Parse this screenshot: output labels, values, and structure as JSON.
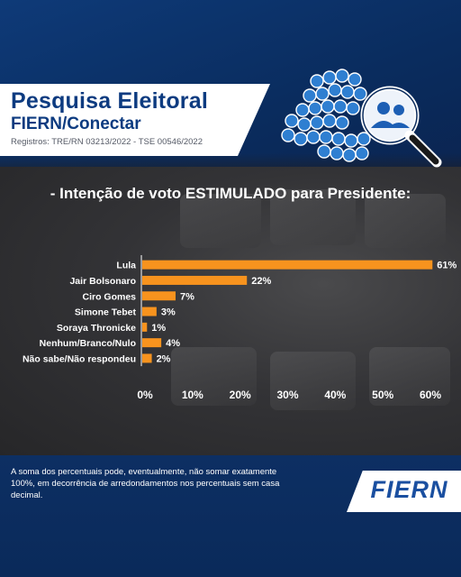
{
  "header": {
    "title": "Pesquisa Eleitoral",
    "subtitle": "FIERN/Conectar",
    "registros": "Registros: TRE/RN 03213/2022 - TSE 00546/2022"
  },
  "heading": "- Intenção de voto ESTIMULADO para Presidente:",
  "chart_data": {
    "type": "bar",
    "orientation": "horizontal",
    "categories": [
      "Lula",
      "Jair Bolsonaro",
      "Ciro Gomes",
      "Simone Tebet",
      "Soraya Thronicke",
      "Nenhum/Branco/Nulo",
      "Não sabe/Não respondeu"
    ],
    "values": [
      61,
      22,
      7,
      3,
      1,
      4,
      2
    ],
    "value_labels": [
      "61%",
      "22%",
      "7%",
      "3%",
      "1%",
      "4%",
      "2%"
    ],
    "xlim": [
      0,
      60
    ],
    "xticks": [
      "0%",
      "10%",
      "20%",
      "30%",
      "40%",
      "50%",
      "60%"
    ],
    "grid": false,
    "bar_color": "#f7931e"
  },
  "footnote": "A soma dos percentuais pode, eventualmente, não somar exatamente 100%, em decorrência de arredondamentos nos percentuais sem casa decimal.",
  "logo": {
    "text": "FIERN"
  },
  "colors": {
    "brand_blue": "#0d3b80",
    "accent_orange": "#f7931e"
  }
}
